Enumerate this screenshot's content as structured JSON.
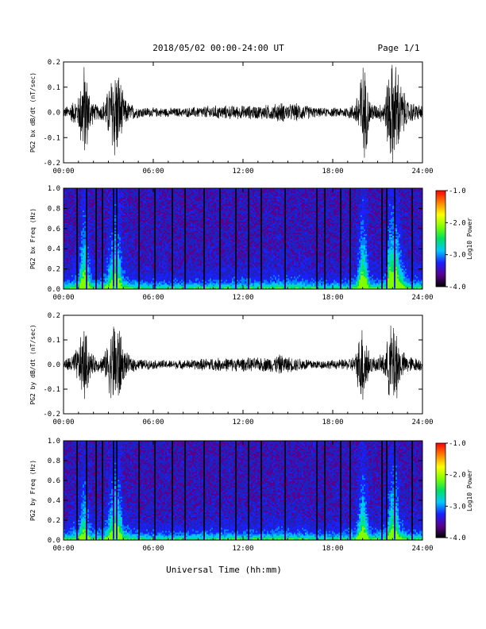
{
  "header": {
    "title": "2018/05/02  00:00-24:00 UT",
    "page": "Page 1/1"
  },
  "xlabel": "Universal Time (hh:mm)",
  "chart_data": [
    {
      "type": "line",
      "ylabel": "PG2 bx dB/dt (nT/sec)",
      "xlim": [
        0,
        24
      ],
      "ylim": [
        -0.2,
        0.2
      ],
      "xticks": [
        "00:00",
        "06:00",
        "12:00",
        "18:00",
        "24:00"
      ],
      "yticks": [
        "-0.2",
        "-0.1",
        "0.0",
        "0.1",
        "0.2"
      ],
      "envelope": {
        "hours": [
          0,
          0.5,
          1,
          1.2,
          1.4,
          1.6,
          1.8,
          2,
          2.4,
          2.8,
          3.2,
          3.4,
          3.6,
          3.8,
          4,
          4.4,
          5,
          6,
          7,
          8,
          9,
          10,
          11,
          12,
          13,
          14,
          14.5,
          15,
          15.5,
          16,
          17,
          18,
          19,
          19.5,
          20,
          20.2,
          20.5,
          21,
          21.5,
          21.8,
          22,
          22.3,
          22.5,
          23,
          23.5,
          24
        ],
        "amplitude": [
          0.02,
          0.04,
          0.07,
          0.17,
          0.22,
          0.15,
          0.08,
          0.04,
          0.03,
          0.06,
          0.16,
          0.22,
          0.2,
          0.15,
          0.07,
          0.04,
          0.025,
          0.02,
          0.02,
          0.02,
          0.025,
          0.03,
          0.03,
          0.03,
          0.03,
          0.035,
          0.045,
          0.035,
          0.04,
          0.035,
          0.02,
          0.02,
          0.025,
          0.04,
          0.22,
          0.18,
          0.05,
          0.03,
          0.06,
          0.22,
          0.22,
          0.22,
          0.14,
          0.05,
          0.04,
          0.03
        ]
      }
    },
    {
      "type": "heatmap",
      "ylabel": "PG2 bx Freq (Hz)",
      "xlim": [
        0,
        24
      ],
      "ylim": [
        0,
        1.0
      ],
      "xticks": [
        "00:00",
        "06:00",
        "12:00",
        "18:00",
        "24:00"
      ],
      "yticks": [
        "0.0",
        "0.2",
        "0.4",
        "0.6",
        "0.8",
        "1.0"
      ],
      "colorbar": {
        "label": "Log10 Power",
        "range": [
          -4.0,
          -1.0
        ],
        "ticks": [
          "-1.0",
          "-2.0",
          "-3.0",
          "-4.0"
        ],
        "colors": [
          "#000000",
          "#5a0090",
          "#1a20ff",
          "#00c8ff",
          "#00e060",
          "#80ff00",
          "#ffff00",
          "#ff8000",
          "#ff0000"
        ]
      }
    },
    {
      "type": "line",
      "ylabel": "PG2 by dB/dt (nT/sec)",
      "xlim": [
        0,
        24
      ],
      "ylim": [
        -0.2,
        0.2
      ],
      "xticks": [
        "00:00",
        "06:00",
        "12:00",
        "18:00",
        "24:00"
      ],
      "yticks": [
        "-0.2",
        "-0.1",
        "0.0",
        "0.1",
        "0.2"
      ],
      "envelope": {
        "hours": [
          0,
          0.5,
          1,
          1.2,
          1.4,
          1.6,
          1.8,
          2,
          2.4,
          2.8,
          3.2,
          3.4,
          3.6,
          3.8,
          4,
          4.4,
          5,
          6,
          7,
          8,
          9,
          10,
          11,
          12,
          13,
          14,
          14.5,
          15,
          15.5,
          16,
          17,
          18,
          19,
          19.5,
          20,
          20.2,
          20.5,
          21,
          21.5,
          21.8,
          22,
          22.3,
          22.5,
          23,
          23.5,
          24
        ],
        "amplitude": [
          0.02,
          0.04,
          0.08,
          0.14,
          0.17,
          0.12,
          0.06,
          0.04,
          0.03,
          0.06,
          0.16,
          0.22,
          0.2,
          0.16,
          0.07,
          0.04,
          0.025,
          0.02,
          0.02,
          0.02,
          0.025,
          0.03,
          0.03,
          0.03,
          0.03,
          0.035,
          0.045,
          0.035,
          0.03,
          0.03,
          0.02,
          0.02,
          0.025,
          0.04,
          0.2,
          0.15,
          0.04,
          0.03,
          0.06,
          0.16,
          0.2,
          0.18,
          0.07,
          0.04,
          0.03,
          0.03
        ]
      }
    },
    {
      "type": "heatmap",
      "ylabel": "PG2 by Freq (Hz)",
      "xlim": [
        0,
        24
      ],
      "ylim": [
        0,
        1.0
      ],
      "xticks": [
        "00:00",
        "06:00",
        "12:00",
        "18:00",
        "24:00"
      ],
      "yticks": [
        "0.0",
        "0.2",
        "0.4",
        "0.6",
        "0.8",
        "1.0"
      ],
      "colorbar": {
        "label": "Log10 Power",
        "range": [
          -4.0,
          -1.0
        ],
        "ticks": [
          "-1.0",
          "-2.0",
          "-3.0",
          "-4.0"
        ],
        "colors": [
          "#000000",
          "#5a0090",
          "#1a20ff",
          "#00c8ff",
          "#00e060",
          "#80ff00",
          "#ffff00",
          "#ff8000",
          "#ff0000"
        ]
      }
    }
  ]
}
